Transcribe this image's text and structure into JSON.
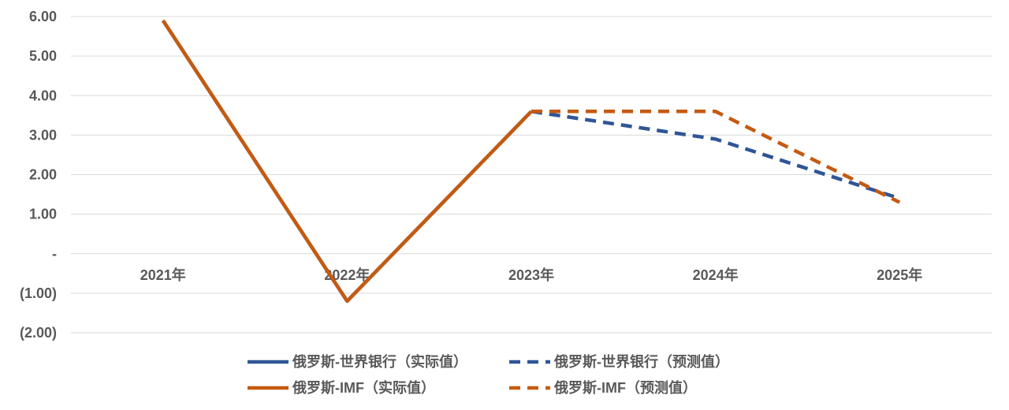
{
  "chart_data": {
    "type": "line",
    "categories": [
      "2021年",
      "2022年",
      "2023年",
      "2024年",
      "2025年"
    ],
    "y_ticks": [
      6,
      5,
      4,
      3,
      2,
      1,
      0,
      -1,
      -2
    ],
    "y_tick_labels": [
      "6.00",
      "5.00",
      "4.00",
      "3.00",
      "2.00",
      "1.00",
      "-",
      "(1.00)",
      "(2.00)"
    ],
    "ylim": [
      -2,
      6
    ],
    "grid": true,
    "legend_position": "bottom",
    "series": [
      {
        "name": "俄罗斯-世界银行（实际值）",
        "color": "#2f5597",
        "dash": "solid",
        "values": [
          5.9,
          -1.2,
          3.6,
          null,
          null
        ]
      },
      {
        "name": "俄罗斯-世界银行（预测值）",
        "color": "#2f5597",
        "dash": "dashed",
        "values": [
          null,
          null,
          3.6,
          2.9,
          1.4
        ]
      },
      {
        "name": "俄罗斯-IMF（实际值）",
        "color": "#c55a11",
        "dash": "solid",
        "values": [
          5.9,
          -1.2,
          3.6,
          null,
          null
        ]
      },
      {
        "name": "俄罗斯-IMF（预测值）",
        "color": "#c55a11",
        "dash": "dashed",
        "values": [
          null,
          null,
          3.6,
          3.6,
          1.3
        ]
      }
    ]
  }
}
